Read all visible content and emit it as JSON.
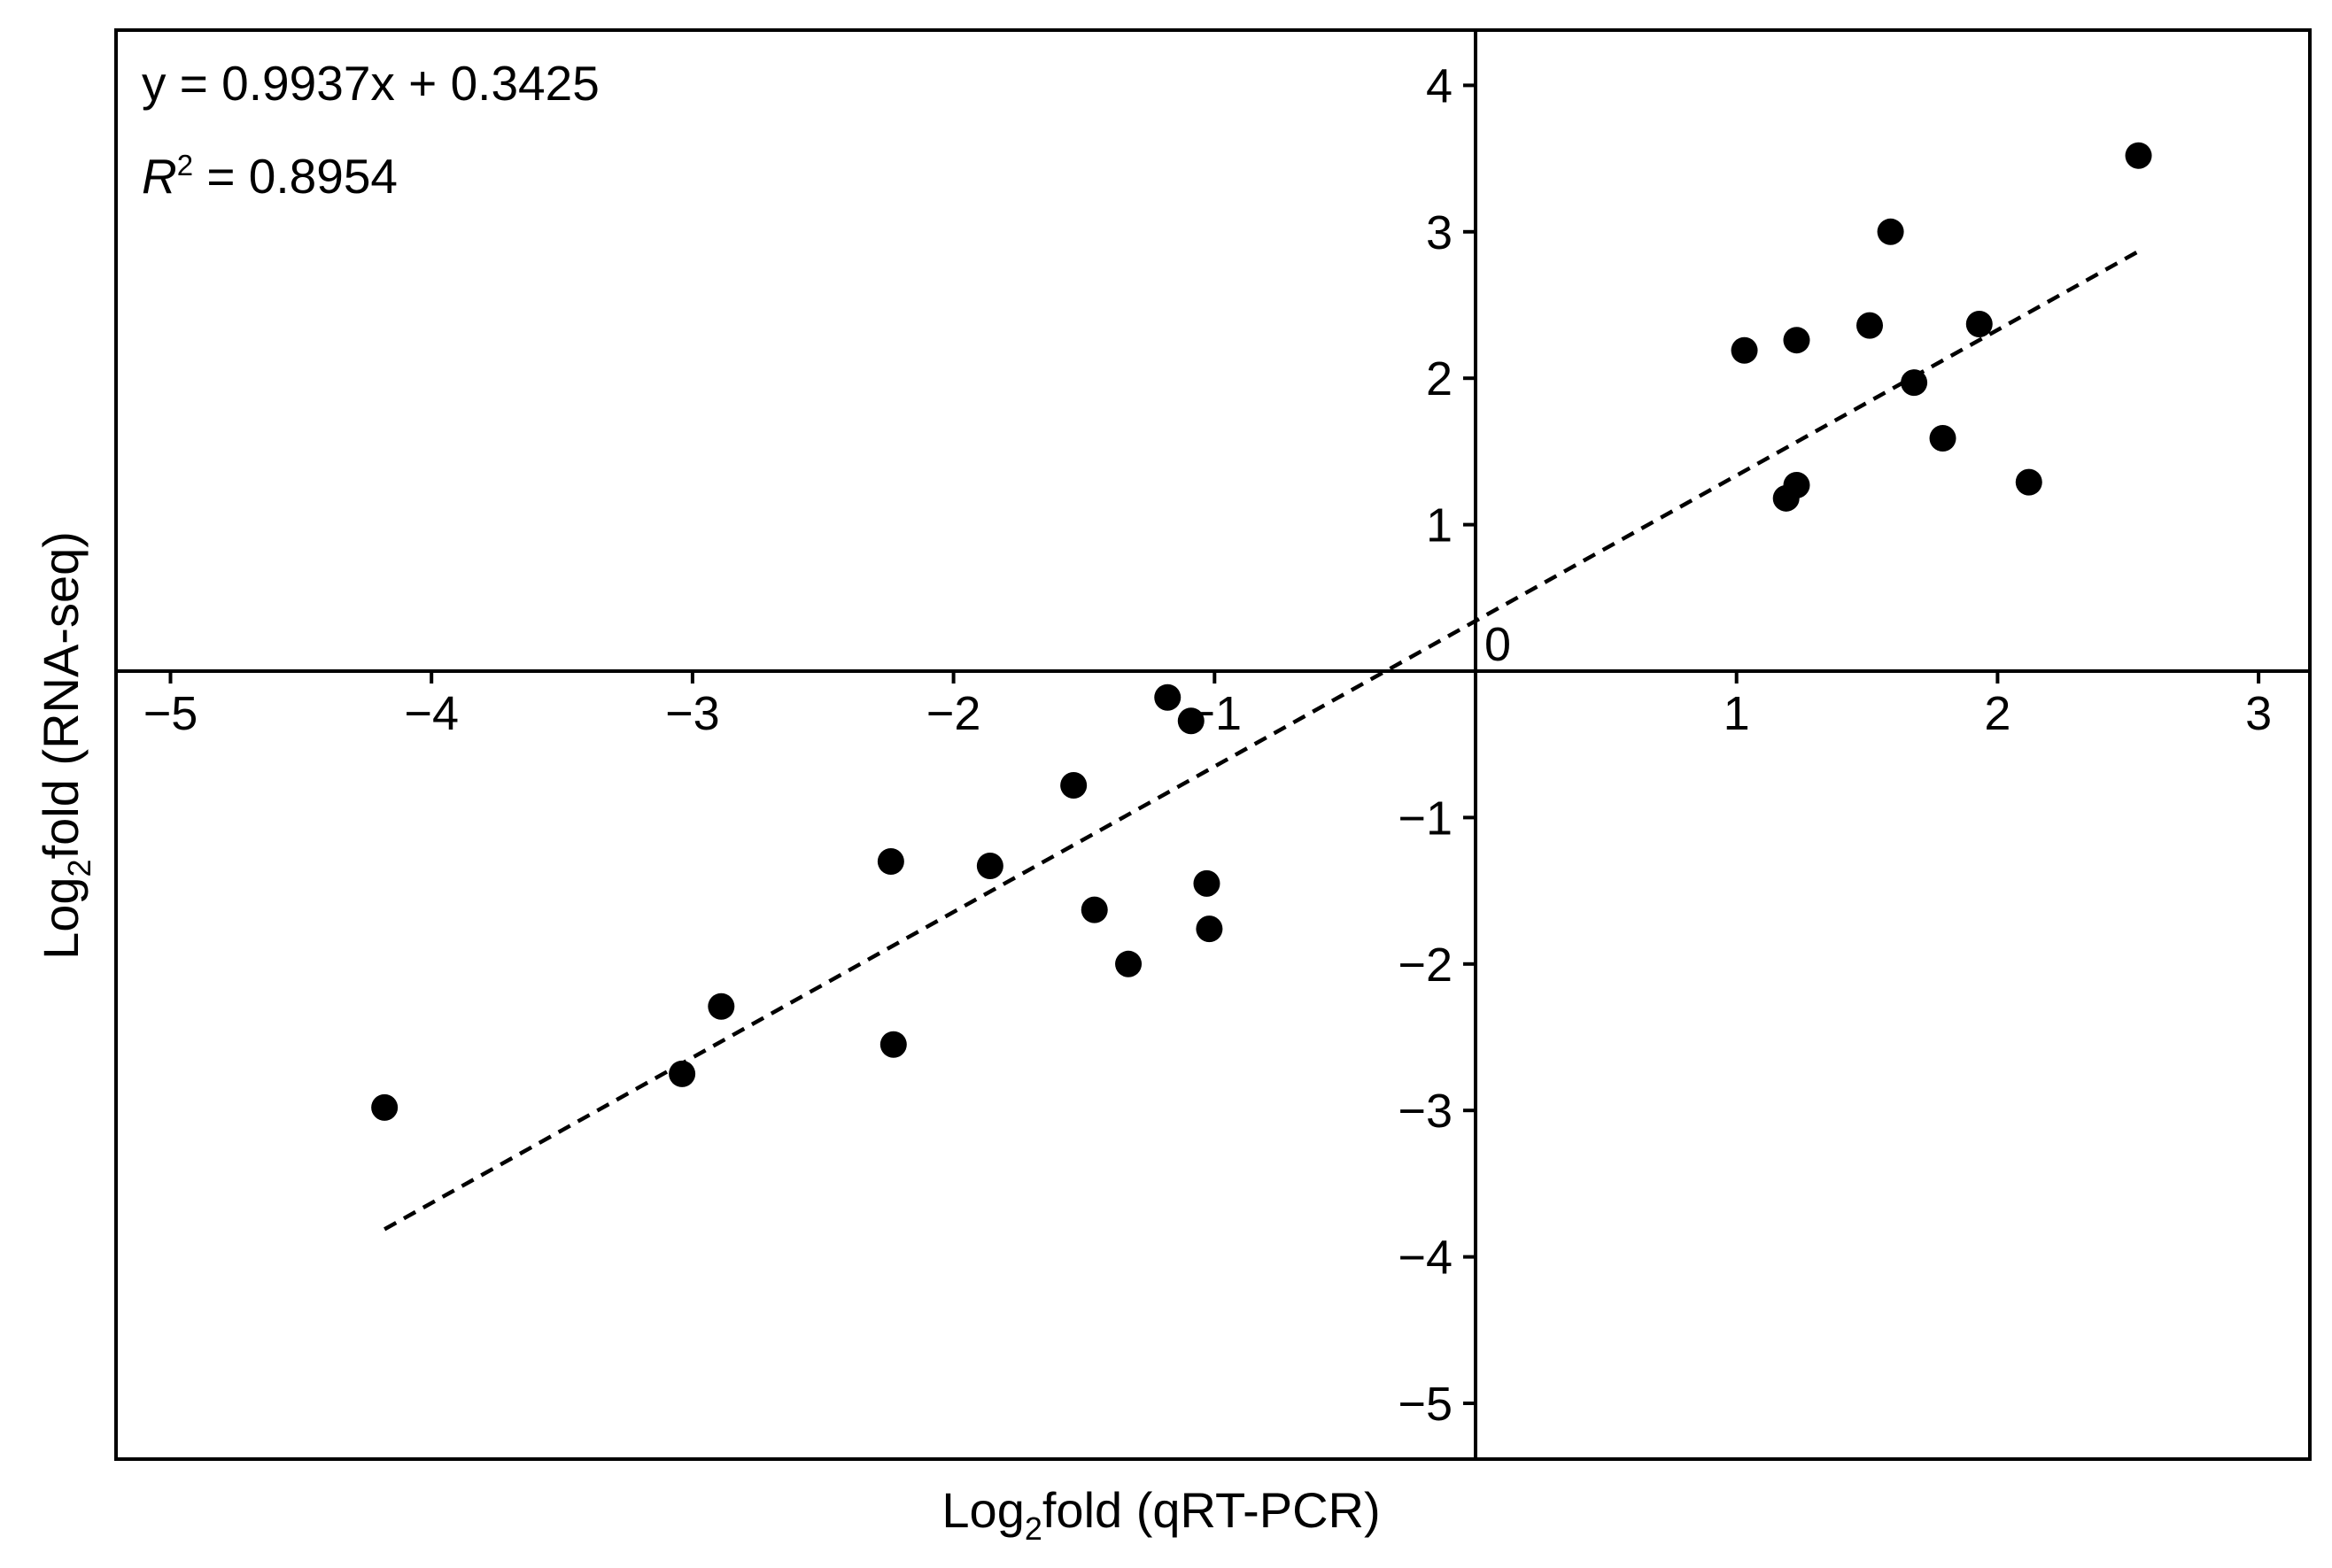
{
  "chart_data": {
    "type": "scatter",
    "xlabel": {
      "base": "Log",
      "sub": "2",
      "rest": "fold (qRT-PCR)"
    },
    "ylabel": {
      "base": "Log",
      "sub": "2",
      "rest": "fold (RNA-seq)"
    },
    "xlim": [
      -5.2,
      3.2
    ],
    "ylim": [
      -5.4,
      4.4
    ],
    "x_ticks": [
      {
        "value": -5,
        "label": "−5"
      },
      {
        "value": -4,
        "label": "−4"
      },
      {
        "value": -3,
        "label": "−3"
      },
      {
        "value": -2,
        "label": "−2"
      },
      {
        "value": -1,
        "label": "−1"
      },
      {
        "value": 1,
        "label": "1"
      },
      {
        "value": 2,
        "label": "2"
      },
      {
        "value": 3,
        "label": "3"
      }
    ],
    "y_ticks": [
      {
        "value": 4,
        "label": "4"
      },
      {
        "value": 3,
        "label": "3"
      },
      {
        "value": 2,
        "label": "2"
      },
      {
        "value": 1,
        "label": "1"
      },
      {
        "value": -1,
        "label": "−1"
      },
      {
        "value": -2,
        "label": "−2"
      },
      {
        "value": -3,
        "label": "−3"
      },
      {
        "value": -4,
        "label": "−4"
      },
      {
        "value": -5,
        "label": "−5"
      }
    ],
    "origin_label": "0",
    "equation_text": "y = 0.9937x + 0.3425",
    "r2": {
      "symbol": "R",
      "sup": "2",
      "rest": " = 0.8954"
    },
    "fit_line": {
      "slope": 0.9937,
      "intercept": 0.3425,
      "x_range": [
        -4.18,
        2.55
      ]
    },
    "points": [
      {
        "x": -4.18,
        "y": -2.98
      },
      {
        "x": -3.04,
        "y": -2.75
      },
      {
        "x": -2.89,
        "y": -2.29
      },
      {
        "x": -2.24,
        "y": -1.3
      },
      {
        "x": -2.23,
        "y": -2.55
      },
      {
        "x": -1.86,
        "y": -1.33
      },
      {
        "x": -1.54,
        "y": -0.78
      },
      {
        "x": -1.46,
        "y": -1.63
      },
      {
        "x": -1.33,
        "y": -2.0
      },
      {
        "x": -1.18,
        "y": -0.18
      },
      {
        "x": -1.09,
        "y": -0.34
      },
      {
        "x": -1.03,
        "y": -1.45
      },
      {
        "x": -1.02,
        "y": -1.76
      },
      {
        "x": 1.03,
        "y": 2.19
      },
      {
        "x": 1.19,
        "y": 1.18
      },
      {
        "x": 1.23,
        "y": 2.26
      },
      {
        "x": 1.23,
        "y": 1.27
      },
      {
        "x": 1.51,
        "y": 2.36
      },
      {
        "x": 1.59,
        "y": 3.0
      },
      {
        "x": 1.68,
        "y": 1.97
      },
      {
        "x": 1.79,
        "y": 1.59
      },
      {
        "x": 1.93,
        "y": 2.37
      },
      {
        "x": 2.12,
        "y": 1.29
      },
      {
        "x": 2.54,
        "y": 3.52
      }
    ]
  }
}
